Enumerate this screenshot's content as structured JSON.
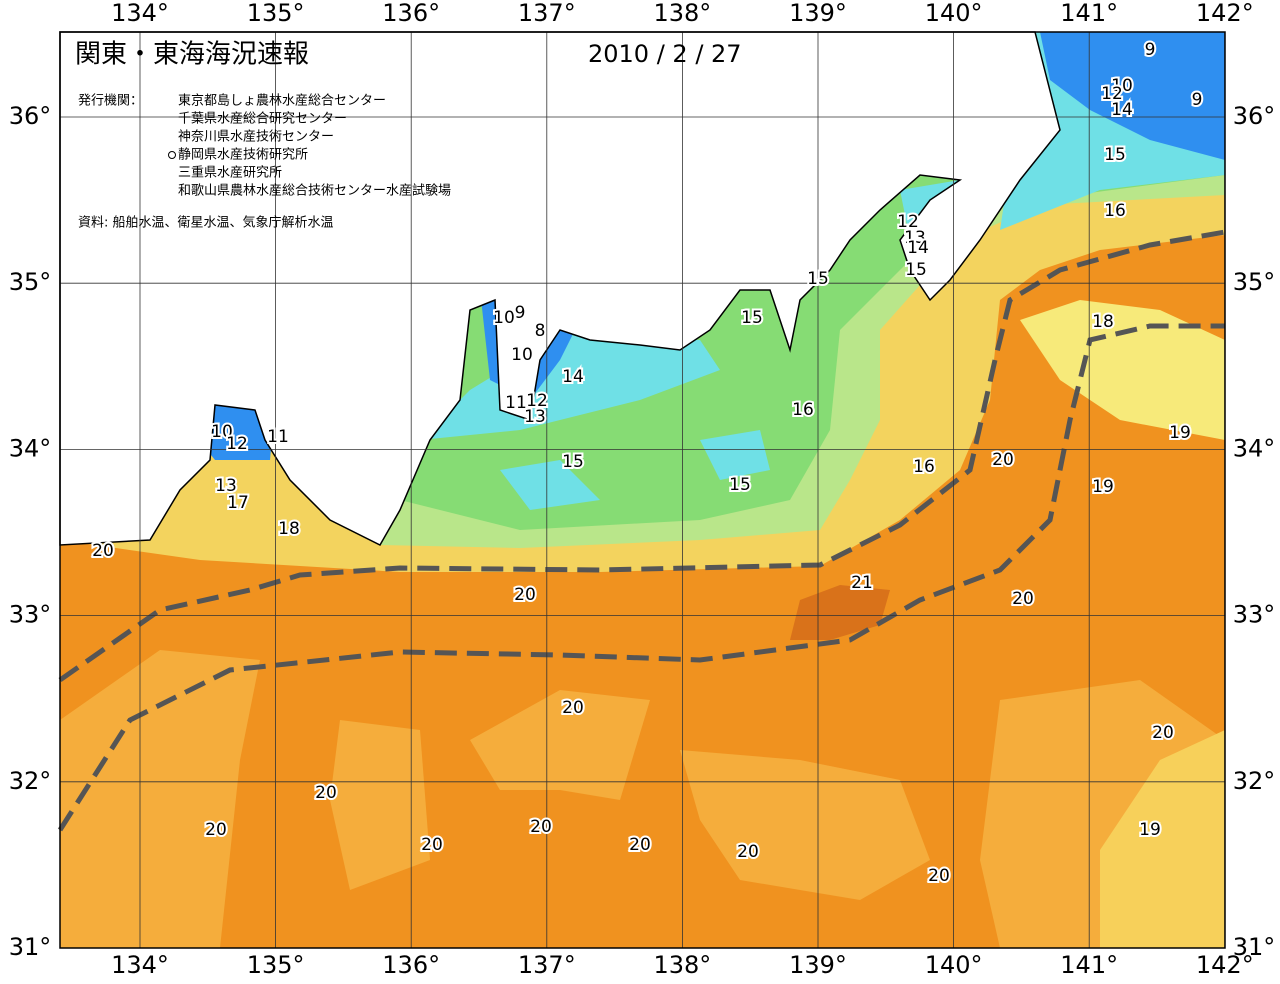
{
  "header": {
    "title": "関東・東海海況速報",
    "date": "2010 / 2 / 27",
    "agencies_label": "発行機関：",
    "agencies": [
      "東京都島しょ農林水産総合センター",
      "千葉県水産総合研究センター",
      "神奈川県水産技術センター",
      "静岡県水産技術研究所",
      "三重県水産研究所",
      "和歌山県農林水産総合技術センター水産試験場"
    ],
    "source": "資料: 船舶水温、衛星水温、気象庁解析水温"
  },
  "map": {
    "lon_ticks": [
      {
        "value": 134,
        "label": "134°"
      },
      {
        "value": 135,
        "label": "135°"
      },
      {
        "value": 136,
        "label": "136°"
      },
      {
        "value": 137,
        "label": "137°"
      },
      {
        "value": 138,
        "label": "138°"
      },
      {
        "value": 139,
        "label": "139°"
      },
      {
        "value": 140,
        "label": "140°"
      },
      {
        "value": 141,
        "label": "141°"
      },
      {
        "value": 142,
        "label": "142°"
      }
    ],
    "lat_ticks": [
      {
        "value": 31,
        "label": "31°"
      },
      {
        "value": 32,
        "label": "32°"
      },
      {
        "value": 33,
        "label": "33°"
      },
      {
        "value": 34,
        "label": "34°"
      },
      {
        "value": 35,
        "label": "35°"
      },
      {
        "value": 36,
        "label": "36°"
      }
    ],
    "contour_labels": [
      9,
      10,
      12,
      14,
      9,
      15,
      16,
      12,
      13,
      14,
      15,
      15,
      15,
      18,
      10,
      9,
      8,
      10,
      14,
      12,
      11,
      13,
      16,
      10,
      12,
      11,
      15,
      15,
      16,
      20,
      19,
      19,
      13,
      17,
      18,
      20,
      20,
      21,
      20,
      20,
      20,
      20,
      20,
      20,
      20,
      20,
      20,
      20,
      19
    ]
  }
}
